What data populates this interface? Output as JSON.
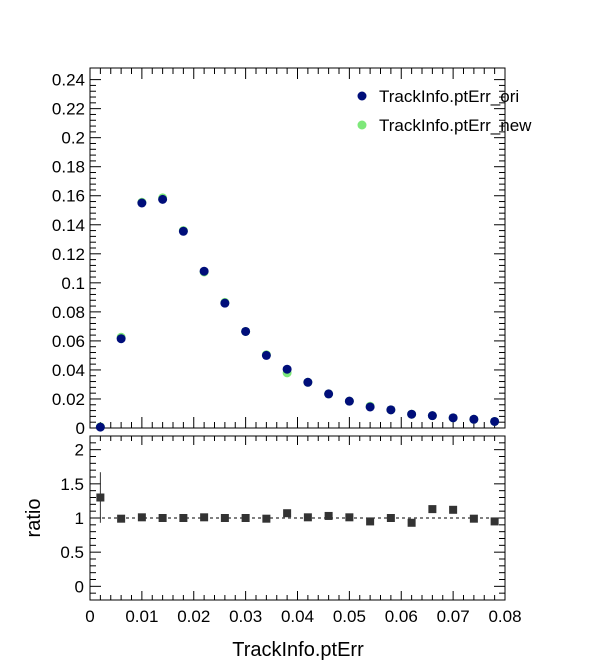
{
  "chart_data": [
    {
      "type": "scatter",
      "xlim": [
        0,
        0.08
      ],
      "ylim": [
        0,
        0.248
      ],
      "x_tick_step": 0.01,
      "y_ticks": [
        "0",
        "0.02",
        "0.04",
        "0.06",
        "0.08",
        "0.1",
        "0.12",
        "0.14",
        "0.16",
        "0.18",
        "0.2",
        "0.22",
        "0.24"
      ],
      "legend_position": "top-right",
      "series": [
        {
          "name": "TrackInfo.ptErr_ori",
          "color": "#000e7a",
          "x": [
            0.002,
            0.006,
            0.01,
            0.014,
            0.018,
            0.022,
            0.026,
            0.03,
            0.034,
            0.038,
            0.042,
            0.046,
            0.05,
            0.054,
            0.058,
            0.062,
            0.066,
            0.07,
            0.074,
            0.078
          ],
          "y": [
            0.0006,
            0.0615,
            0.155,
            0.1575,
            0.1355,
            0.108,
            0.086,
            0.0665,
            0.05,
            0.0405,
            0.0315,
            0.0235,
            0.0185,
            0.0145,
            0.0125,
            0.0095,
            0.0085,
            0.007,
            0.006,
            0.0045
          ]
        },
        {
          "name": "TrackInfo.ptErr_new",
          "color": "#7ee87a",
          "x": [
            0.002,
            0.006,
            0.01,
            0.014,
            0.018,
            0.022,
            0.026,
            0.03,
            0.034,
            0.038,
            0.042,
            0.046,
            0.05,
            0.054,
            0.058,
            0.062,
            0.066,
            0.07,
            0.074,
            0.078
          ],
          "y": [
            0.0008,
            0.0625,
            0.1555,
            0.1585,
            0.136,
            0.1075,
            0.0865,
            0.0665,
            0.0505,
            0.038,
            0.0315,
            0.0235,
            0.0185,
            0.015,
            0.0125,
            0.0095,
            0.0085,
            0.007,
            0.006,
            0.0045
          ]
        }
      ]
    },
    {
      "type": "scatter",
      "xlim": [
        0,
        0.08
      ],
      "ylim": [
        -0.2,
        2.2
      ],
      "x_ticks": [
        "0",
        "0.01",
        "0.02",
        "0.03",
        "0.04",
        "0.05",
        "0.06",
        "0.07",
        "0.08"
      ],
      "y_ticks": [
        "0",
        "0.5",
        "1",
        "1.5",
        "2"
      ],
      "xlabel": "TrackInfo.ptErr",
      "ylabel": "ratio",
      "reference_line": 1,
      "series": [
        {
          "color": "#333333",
          "x": [
            0.002,
            0.006,
            0.01,
            0.014,
            0.018,
            0.022,
            0.026,
            0.03,
            0.034,
            0.038,
            0.042,
            0.046,
            0.05,
            0.054,
            0.058,
            0.062,
            0.066,
            0.07,
            0.074,
            0.078
          ],
          "y": [
            1.3,
            0.99,
            1.01,
            1.0,
            1.0,
            1.01,
            1.0,
            1.0,
            0.99,
            1.07,
            1.01,
            1.03,
            1.01,
            0.95,
            1.0,
            0.93,
            1.13,
            1.12,
            0.99,
            0.95
          ],
          "err": [
            0.37,
            0.03,
            0.02,
            0.02,
            0.02,
            0.02,
            0.02,
            0.02,
            0.03,
            0.03,
            0.03,
            0.03,
            0.03,
            0.03,
            0.03,
            0.03,
            0.04,
            0.04,
            0.04,
            0.04
          ]
        }
      ]
    }
  ]
}
